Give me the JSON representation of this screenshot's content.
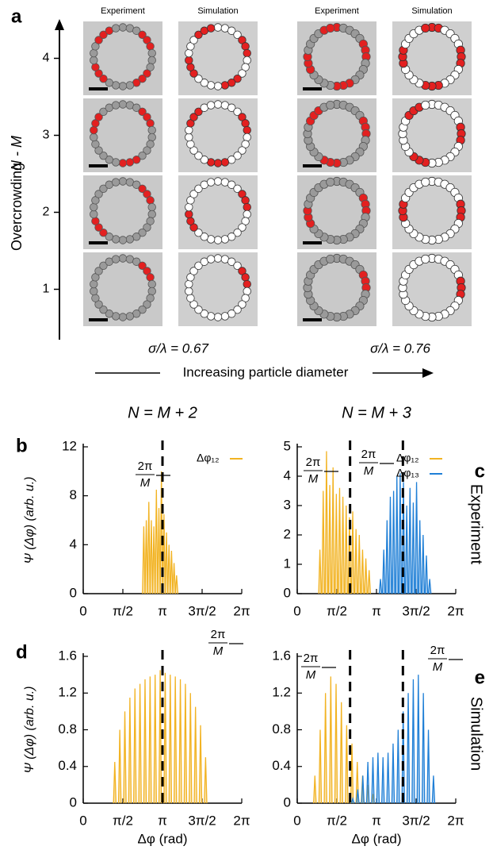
{
  "panel_a": {
    "label": "a",
    "column_headers": [
      "Experiment",
      "Simulation",
      "Experiment",
      "Simulation"
    ],
    "y_label": "Overcrowding",
    "y_label_var": "N - M",
    "row_ticks": [
      4,
      3,
      2,
      1
    ],
    "sigma_labels": [
      "σ/λ = 0.67",
      "σ/λ = 0.76"
    ],
    "arrow_label": "Increasing particle diameter"
  },
  "chart_data": [
    {
      "type": "spike",
      "label": "b",
      "title": "N = M + 2",
      "ylabel": "Ψ (Δφ)  (arb. u.)",
      "xlim": [
        0,
        6.2832
      ],
      "xticks": [
        0,
        {
          "value": 1.5708,
          "label": "π/2"
        },
        {
          "value": 3.1416,
          "label": "π"
        },
        {
          "value": 4.7124,
          "label": "3π/2"
        },
        {
          "value": 6.2832,
          "label": "2π"
        }
      ],
      "ylim": [
        0,
        12
      ],
      "yticks": [
        0,
        4,
        8,
        12
      ],
      "vlines": [
        3.1416
      ],
      "annotations": [
        {
          "numerator": "2π",
          "denominator": "M"
        }
      ],
      "series": [
        {
          "name": "Δφ₁₂",
          "color": "#f2b322",
          "x": [
            2.4,
            2.5,
            2.6,
            2.7,
            2.8,
            2.9,
            3.0,
            3.1,
            3.2,
            3.3,
            3.4,
            3.5,
            3.6,
            3.7
          ],
          "values": [
            5.5,
            6,
            7.5,
            6,
            5.5,
            8.5,
            7,
            10,
            6.5,
            5,
            4,
            3.5,
            2.5,
            1.5
          ]
        }
      ]
    },
    {
      "type": "spike",
      "label": "c",
      "title": "N = M + 3",
      "side_label": "Experiment",
      "xlim": [
        0,
        6.2832
      ],
      "xticks": [
        0,
        {
          "value": 1.5708,
          "label": "π/2"
        },
        {
          "value": 3.1416,
          "label": "π"
        },
        {
          "value": 4.7124,
          "label": "3π/2"
        },
        {
          "value": 6.2832,
          "label": "2π"
        }
      ],
      "ylim": [
        0,
        5
      ],
      "yticks": [
        0,
        1,
        2,
        3,
        4,
        5
      ],
      "vlines": [
        2.0944,
        4.1888
      ],
      "annotations": [
        {
          "numerator": "2π",
          "denominator": "M"
        },
        {
          "numerator": "2π",
          "denominator": "M"
        }
      ],
      "series": [
        {
          "name": "Δφ₁₂",
          "color": "#f2b322",
          "x": [
            0.9,
            1.03,
            1.16,
            1.29,
            1.42,
            1.55,
            1.68,
            1.81,
            1.94,
            2.07,
            2.2,
            2.33,
            2.46,
            2.59,
            2.72,
            2.85
          ],
          "values": [
            1.5,
            3.5,
            4.85,
            3.7,
            4.3,
            3.4,
            3.6,
            3.3,
            3.0,
            2.6,
            2.8,
            2.2,
            2.0,
            1.5,
            1.2,
            0.8
          ]
        },
        {
          "name": "Δφ₁₃",
          "color": "#1f7fd6",
          "x": [
            3.3,
            3.43,
            3.56,
            3.69,
            3.82,
            3.95,
            4.08,
            4.21,
            4.34,
            4.47,
            4.6,
            4.73,
            4.86,
            4.99,
            5.12,
            5.25
          ],
          "values": [
            0.5,
            1.5,
            2.5,
            3.3,
            3.5,
            4.0,
            4.1,
            3.8,
            3.0,
            3.6,
            3.1,
            3.8,
            2.5,
            2.0,
            1.3,
            0.5
          ]
        }
      ]
    },
    {
      "type": "spike",
      "label": "d",
      "ylabel": "Ψ (Δφ)  (arb. u.)",
      "xlabel": "Δφ  (rad)",
      "xlim": [
        0,
        6.2832
      ],
      "xticks": [
        0,
        {
          "value": 1.5708,
          "label": "π/2"
        },
        {
          "value": 3.1416,
          "label": "π"
        },
        {
          "value": 4.7124,
          "label": "3π/2"
        },
        {
          "value": 6.2832,
          "label": "2π"
        }
      ],
      "ylim": [
        0,
        1.6
      ],
      "yticks": [
        0,
        0.4,
        0.8,
        1.2,
        1.6
      ],
      "vlines": [
        3.1416
      ],
      "annotations": [
        {
          "numerator": "2π",
          "denominator": "M"
        }
      ],
      "series": [
        {
          "color": "#f2b322",
          "x": [
            1.25,
            1.45,
            1.65,
            1.85,
            2.05,
            2.25,
            2.45,
            2.65,
            2.85,
            3.05,
            3.25,
            3.45,
            3.65,
            3.85,
            4.05,
            4.25,
            4.45,
            4.65,
            4.85
          ],
          "values": [
            0.45,
            0.8,
            1.0,
            1.15,
            1.25,
            1.3,
            1.35,
            1.38,
            1.4,
            1.45,
            1.42,
            1.4,
            1.38,
            1.35,
            1.3,
            1.2,
            1.05,
            0.85,
            0.5
          ]
        }
      ]
    },
    {
      "type": "spike",
      "label": "e",
      "side_label": "Simulation",
      "xlabel": "Δφ  (rad)",
      "xlim": [
        0,
        6.2832
      ],
      "xticks": [
        0,
        {
          "value": 1.5708,
          "label": "π/2"
        },
        {
          "value": 3.1416,
          "label": "π"
        },
        {
          "value": 4.7124,
          "label": "3π/2"
        },
        {
          "value": 6.2832,
          "label": "2π"
        }
      ],
      "ylim": [
        0,
        1.6
      ],
      "yticks": [
        0,
        0.4,
        0.8,
        1.2,
        1.6
      ],
      "vlines": [
        2.0944,
        4.1888
      ],
      "annotations": [
        {
          "numerator": "2π",
          "denominator": "M"
        },
        {
          "numerator": "2π",
          "denominator": "M"
        }
      ],
      "series": [
        {
          "color": "#f2b322",
          "x": [
            0.7,
            0.91,
            1.12,
            1.33,
            1.54,
            1.75,
            1.96,
            2.17,
            2.38,
            2.59,
            2.8,
            3.01
          ],
          "values": [
            0.3,
            0.8,
            1.2,
            1.38,
            1.3,
            1.1,
            0.85,
            0.65,
            0.45,
            0.3,
            0.2,
            0.1
          ]
        },
        {
          "color": "#1f7fd6",
          "x": [
            2.2,
            2.4,
            2.6,
            2.8,
            3.0,
            3.2,
            3.4,
            3.6,
            3.8,
            4.0,
            4.2,
            4.4,
            4.6,
            4.8,
            5.0,
            5.2,
            5.4
          ],
          "values": [
            0.05,
            0.15,
            0.3,
            0.45,
            0.5,
            0.55,
            0.5,
            0.55,
            0.65,
            0.8,
            1.0,
            1.2,
            1.35,
            1.4,
            1.2,
            0.8,
            0.3
          ]
        }
      ]
    }
  ]
}
